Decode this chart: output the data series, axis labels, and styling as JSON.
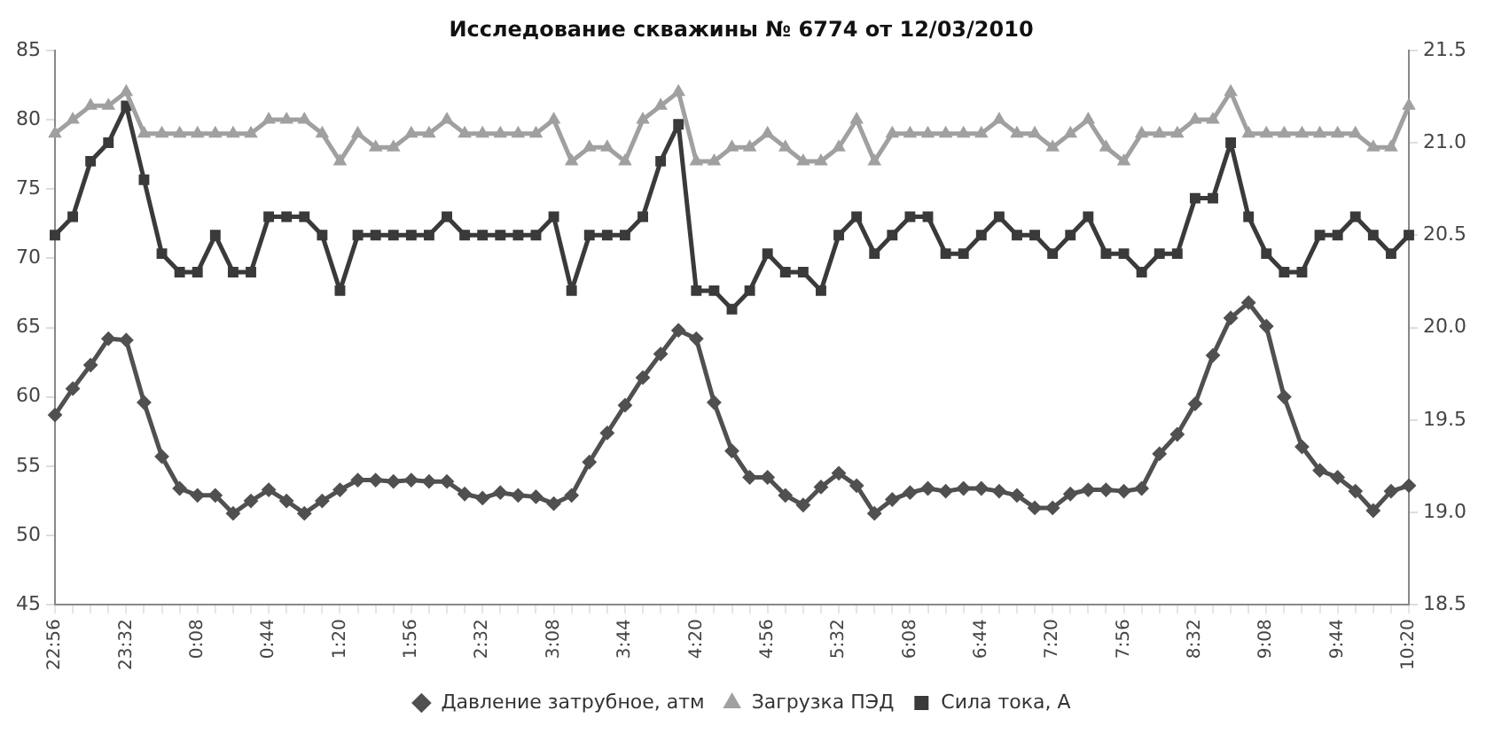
{
  "chart_data": {
    "type": "line",
    "title": "Исследование скважины № 6774 от 12/03/2010",
    "categories": [
      "22:56",
      null,
      null,
      null,
      "23:32",
      null,
      null,
      null,
      "0:08",
      null,
      null,
      null,
      "0:44",
      null,
      null,
      null,
      "1:20",
      null,
      null,
      null,
      "1:56",
      null,
      null,
      null,
      "2:32",
      null,
      null,
      null,
      "3:08",
      null,
      null,
      null,
      "3:44",
      null,
      null,
      null,
      "4:20",
      null,
      null,
      null,
      "4:56",
      null,
      null,
      null,
      "5:32",
      null,
      null,
      null,
      "6:08",
      null,
      null,
      null,
      "6:44",
      null,
      null,
      null,
      "7:20",
      null,
      null,
      null,
      "7:56",
      null,
      null,
      null,
      "8:32",
      null,
      null,
      null,
      "9:08",
      null,
      null,
      null,
      "9:44",
      null,
      null,
      null,
      "10:20"
    ],
    "series": [
      {
        "name": "Давление затрубное, атм",
        "color": "#505050",
        "marker": "diamond",
        "values": [
          58.7,
          60.6,
          62.3,
          64.2,
          64.1,
          59.6,
          55.7,
          53.4,
          52.9,
          52.9,
          51.6,
          52.5,
          53.3,
          52.5,
          51.6,
          52.5,
          53.3,
          54.0,
          54.0,
          53.9,
          54.0,
          53.9,
          53.9,
          53.0,
          52.7,
          53.1,
          52.9,
          52.8,
          52.3,
          52.9,
          55.3,
          57.4,
          59.4,
          61.4,
          63.1,
          64.8,
          64.2,
          59.6,
          56.1,
          54.2,
          54.2,
          52.9,
          52.2,
          53.5,
          54.5,
          53.6,
          51.6,
          52.6,
          53.1,
          53.4,
          53.2,
          53.4,
          53.4,
          53.2,
          52.9,
          52.0,
          52.0,
          53.0,
          53.3,
          53.3,
          53.2,
          53.4,
          55.9,
          57.3,
          59.5,
          63.0,
          65.7,
          66.8,
          65.1,
          60.0,
          56.4,
          54.7,
          54.2,
          53.2,
          51.8,
          53.2,
          53.6
        ]
      },
      {
        "name": "Загрузка ПЭД",
        "color": "#a0a0a0",
        "marker": "triangle",
        "values": [
          79,
          80,
          81,
          81,
          82,
          79,
          79,
          79,
          79,
          79,
          79,
          79,
          80,
          80,
          80,
          79,
          77,
          79,
          78,
          78,
          79,
          79,
          80,
          79,
          79,
          79,
          79,
          79,
          80,
          77,
          78,
          78,
          77,
          80,
          81,
          82,
          77,
          77,
          78,
          78,
          79,
          78,
          77,
          77,
          78,
          80,
          77,
          79,
          79,
          79,
          79,
          79,
          79,
          80,
          79,
          79,
          78,
          79,
          80,
          78,
          77,
          79,
          79,
          79,
          80,
          80,
          82,
          79,
          79,
          79,
          79,
          79,
          79,
          79,
          78,
          78,
          81
        ]
      },
      {
        "name": "Сила тока, А",
        "color": "#3a3a3a",
        "marker": "square",
        "axis": "y2",
        "values": [
          20.5,
          20.6,
          20.9,
          21.0,
          21.2,
          20.8,
          20.4,
          20.3,
          20.3,
          20.5,
          20.3,
          20.3,
          20.6,
          20.6,
          20.6,
          20.5,
          20.2,
          20.5,
          20.5,
          20.5,
          20.5,
          20.5,
          20.6,
          20.5,
          20.5,
          20.5,
          20.5,
          20.5,
          20.6,
          20.2,
          20.5,
          20.5,
          20.5,
          20.6,
          20.9,
          21.1,
          20.2,
          20.2,
          20.1,
          20.2,
          20.4,
          20.3,
          20.3,
          20.2,
          20.5,
          20.6,
          20.4,
          20.5,
          20.6,
          20.6,
          20.4,
          20.4,
          20.5,
          20.6,
          20.5,
          20.5,
          20.4,
          20.5,
          20.6,
          20.4,
          20.4,
          20.3,
          20.4,
          20.4,
          20.7,
          20.7,
          21.0,
          20.6,
          20.4,
          20.3,
          20.3,
          20.5,
          20.5,
          20.6,
          20.5,
          20.4,
          20.5
        ]
      }
    ],
    "ylim": [
      45,
      85
    ],
    "yticks": [
      45,
      50,
      55,
      60,
      65,
      70,
      75,
      80,
      85
    ],
    "y2lim": [
      18.5,
      21.5
    ],
    "y2ticks": [
      18.5,
      {
        "value": 19,
        "label": "19.0"
      },
      19.5,
      {
        "value": 20,
        "label": "20.0"
      },
      20.5,
      {
        "value": 21,
        "label": "21.0"
      },
      21.5
    ],
    "grid": false,
    "legend": "bottom"
  }
}
